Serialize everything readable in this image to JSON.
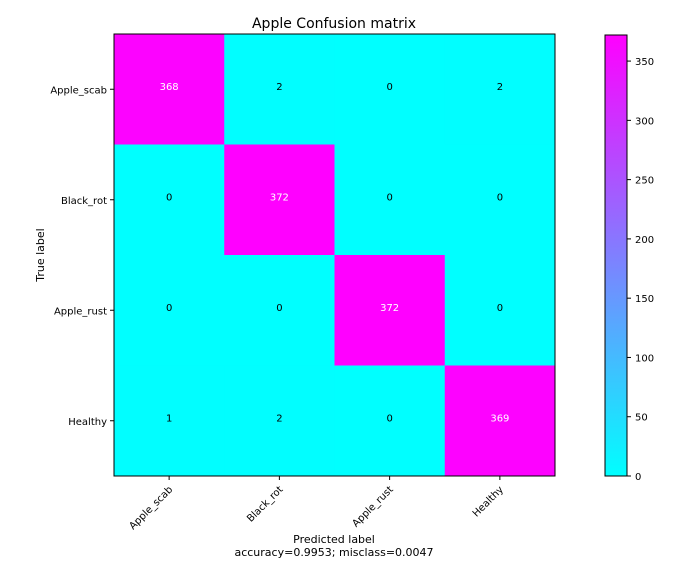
{
  "chart_data": {
    "type": "heatmap",
    "title": "Apple Confusion matrix",
    "xlabel": "Predicted label",
    "xlabel_sub": "accuracy=0.9953; misclass=0.0047",
    "ylabel": "True label",
    "x_categories": [
      "Apple_scab",
      "Black_rot",
      "Apple_rust",
      "Healthy"
    ],
    "y_categories": [
      "Apple_scab",
      "Black_rot",
      "Apple_rust",
      "Healthy"
    ],
    "matrix": [
      [
        368,
        2,
        0,
        2
      ],
      [
        0,
        372,
        0,
        0
      ],
      [
        0,
        0,
        372,
        0
      ],
      [
        1,
        2,
        0,
        369
      ]
    ],
    "colorbar": {
      "min": 0,
      "max": 372,
      "ticks": [
        0,
        50,
        100,
        150,
        200,
        250,
        300,
        350
      ]
    },
    "colormap": {
      "low": "#00ffff",
      "high": "#ff00ff"
    },
    "text_color_high": "#ffffff",
    "text_color_low": "#000000"
  }
}
